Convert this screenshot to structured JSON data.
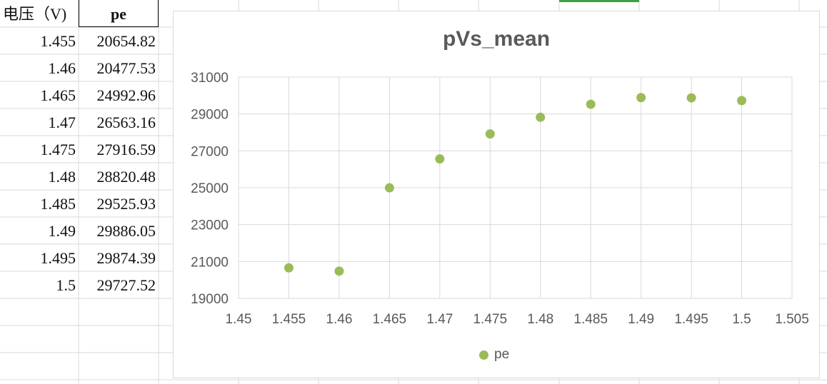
{
  "table": {
    "header_a": "电压（V)",
    "header_b": "pe",
    "rows": [
      {
        "v": "1.455",
        "pe": "20654.82"
      },
      {
        "v": "1.46",
        "pe": "20477.53"
      },
      {
        "v": "1.465",
        "pe": "24992.96"
      },
      {
        "v": "1.47",
        "pe": "26563.16"
      },
      {
        "v": "1.475",
        "pe": "27916.59"
      },
      {
        "v": "1.48",
        "pe": "28820.48"
      },
      {
        "v": "1.485",
        "pe": "29525.93"
      },
      {
        "v": "1.49",
        "pe": "29886.05"
      },
      {
        "v": "1.495",
        "pe": "29874.39"
      },
      {
        "v": "1.5",
        "pe": "29727.52"
      }
    ]
  },
  "colors": {
    "marker": "#9bbb59",
    "gridline": "#d9d9d9",
    "axis_text": "#595959",
    "selection": "#3fa141"
  },
  "chart_data": {
    "type": "scatter",
    "title": "pVs_mean",
    "xlabel": "",
    "ylabel": "",
    "xlim": [
      1.45,
      1.505
    ],
    "ylim": [
      19000,
      31000
    ],
    "x_ticks": [
      "1.45",
      "1.455",
      "1.46",
      "1.465",
      "1.47",
      "1.475",
      "1.48",
      "1.485",
      "1.49",
      "1.495",
      "1.5",
      "1.505"
    ],
    "y_ticks": [
      "19000",
      "21000",
      "23000",
      "25000",
      "27000",
      "29000",
      "31000"
    ],
    "grid": true,
    "legend_position": "bottom",
    "series": [
      {
        "name": "pe",
        "x": [
          1.455,
          1.46,
          1.465,
          1.47,
          1.475,
          1.48,
          1.485,
          1.49,
          1.495,
          1.5
        ],
        "y": [
          20654.82,
          20477.53,
          24992.96,
          26563.16,
          27916.59,
          28820.48,
          29525.93,
          29886.05,
          29874.39,
          29727.52
        ]
      }
    ]
  }
}
